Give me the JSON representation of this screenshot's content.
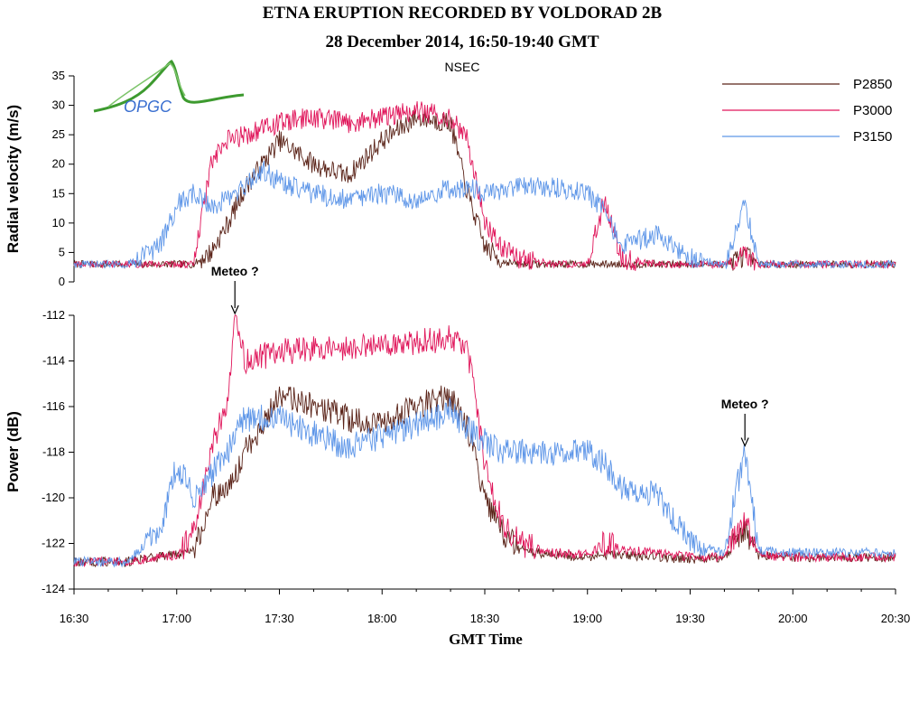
{
  "title": "ETNA ERUPTION RECORDED BY VOLDORAD 2B",
  "subtitle": "28 December 2014, 16:50-19:40 GMT",
  "logo_text": "OPGC",
  "x_axis": {
    "label": "GMT Time",
    "ticks": [
      "16:30",
      "17:00",
      "17:30",
      "18:00",
      "18:30",
      "19:00",
      "19:30",
      "20:00",
      "20:30"
    ]
  },
  "annotations": [
    {
      "text": "Meteo ?",
      "time": "17:17",
      "panel": "power",
      "value": -112
    },
    {
      "text": "Meteo ?",
      "time": "19:46",
      "panel": "power",
      "value": -117.8
    }
  ],
  "colors": {
    "P2850": "#5a2318",
    "P3000": "#e0155a",
    "P3150": "#5e96e8"
  },
  "chart_data": [
    {
      "type": "line",
      "title": "NSEC",
      "xlabel": "",
      "ylabel": "Radial velocity (m/s)",
      "x_unit": "GMT time",
      "xlim": [
        "16:30",
        "20:30"
      ],
      "ylim": [
        0,
        35
      ],
      "yticks": [
        "0",
        "5",
        "10",
        "15",
        "20",
        "25",
        "30",
        "35"
      ],
      "legend": "top-right",
      "grid": false,
      "x": [
        "16:30",
        "16:45",
        "16:55",
        "17:00",
        "17:05",
        "17:10",
        "17:15",
        "17:20",
        "17:25",
        "17:30",
        "17:40",
        "17:50",
        "18:00",
        "18:10",
        "18:20",
        "18:25",
        "18:30",
        "18:35",
        "18:40",
        "18:50",
        "19:00",
        "19:05",
        "19:10",
        "19:20",
        "19:30",
        "19:40",
        "19:46",
        "19:50",
        "20:00",
        "20:15",
        "20:30"
      ],
      "series": [
        {
          "name": "P2850",
          "values": [
            3.0,
            3.0,
            3.0,
            3.0,
            3.0,
            5.0,
            10.0,
            16.0,
            20.0,
            24.0,
            20.0,
            18.0,
            24.0,
            28.0,
            27.0,
            15.0,
            6.0,
            3.5,
            3.0,
            3.0,
            3.0,
            3.0,
            3.0,
            3.0,
            3.0,
            3.0,
            4.5,
            3.0,
            3.0,
            3.0,
            3.0
          ]
        },
        {
          "name": "P3000",
          "values": [
            3.0,
            3.0,
            3.0,
            3.0,
            3.0,
            20.0,
            24.0,
            25.0,
            26.0,
            27.0,
            28.0,
            27.0,
            28.0,
            29.0,
            28.0,
            24.0,
            10.0,
            6.0,
            4.0,
            3.0,
            3.0,
            14.0,
            4.0,
            3.0,
            3.0,
            3.0,
            5.0,
            3.0,
            3.0,
            3.0,
            3.0
          ]
        },
        {
          "name": "P3150",
          "values": [
            3.0,
            3.0,
            6.0,
            13.0,
            15.0,
            13.0,
            14.0,
            16.0,
            19.0,
            17.0,
            15.0,
            14.0,
            15.0,
            14.0,
            16.0,
            16.0,
            15.0,
            15.0,
            16.0,
            16.0,
            15.0,
            12.0,
            6.0,
            8.0,
            4.0,
            3.0,
            13.0,
            3.0,
            3.0,
            3.0,
            3.0
          ]
        }
      ]
    },
    {
      "type": "line",
      "title": "",
      "xlabel": "GMT Time",
      "ylabel": "Power (dB)",
      "x_unit": "GMT time",
      "xlim": [
        "16:30",
        "20:30"
      ],
      "ylim": [
        -124,
        -112
      ],
      "yticks": [
        "-124",
        "-122",
        "-120",
        "-118",
        "-116",
        "-114",
        "-112"
      ],
      "grid": false,
      "x": [
        "16:30",
        "16:45",
        "16:55",
        "17:00",
        "17:05",
        "17:10",
        "17:15",
        "17:17",
        "17:20",
        "17:30",
        "17:40",
        "17:50",
        "18:00",
        "18:10",
        "18:20",
        "18:25",
        "18:30",
        "18:35",
        "18:40",
        "18:50",
        "19:00",
        "19:05",
        "19:10",
        "19:20",
        "19:30",
        "19:40",
        "19:46",
        "19:50",
        "20:00",
        "20:15",
        "20:30"
      ],
      "series": [
        {
          "name": "P2850",
          "values": [
            -122.8,
            -122.8,
            -122.6,
            -122.5,
            -122.3,
            -120.0,
            -119.5,
            -119.0,
            -118.0,
            -115.5,
            -116.0,
            -116.5,
            -116.8,
            -116.0,
            -115.5,
            -117.0,
            -120.0,
            -121.5,
            -122.3,
            -122.5,
            -122.6,
            -122.5,
            -122.5,
            -122.6,
            -122.7,
            -122.6,
            -121.5,
            -122.5,
            -122.6,
            -122.6,
            -122.6
          ]
        },
        {
          "name": "P3000",
          "values": [
            -122.8,
            -122.8,
            -122.6,
            -122.5,
            -121.5,
            -118.0,
            -115.5,
            -112.0,
            -114.0,
            -113.6,
            -113.5,
            -113.4,
            -113.3,
            -113.2,
            -113.0,
            -113.5,
            -118.5,
            -121.0,
            -122.0,
            -122.4,
            -122.5,
            -122.0,
            -122.3,
            -122.4,
            -122.6,
            -122.6,
            -121.0,
            -122.5,
            -122.6,
            -122.6,
            -122.6
          ]
        },
        {
          "name": "P3150",
          "values": [
            -122.8,
            -122.8,
            -121.5,
            -118.5,
            -120.0,
            -119.0,
            -118.0,
            -117.0,
            -116.5,
            -116.5,
            -117.2,
            -117.8,
            -117.3,
            -116.8,
            -116.2,
            -117.0,
            -117.5,
            -118.0,
            -118.0,
            -118.0,
            -118.0,
            -118.5,
            -119.5,
            -119.8,
            -122.0,
            -122.4,
            -117.8,
            -122.3,
            -122.4,
            -122.4,
            -122.4
          ]
        }
      ]
    }
  ]
}
